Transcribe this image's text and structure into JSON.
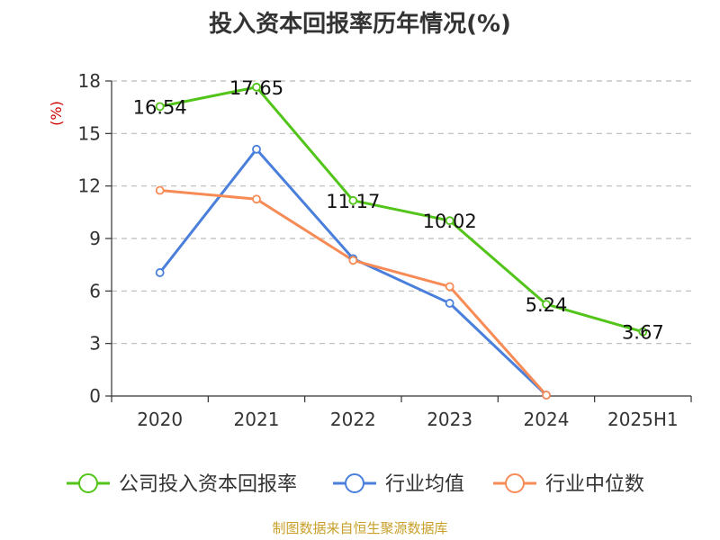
{
  "chart_data": {
    "type": "line",
    "title": "投入资本回报率历年情况(%)",
    "ylabel": "(%)",
    "xlabel": "",
    "categories": [
      "2020",
      "2021",
      "2022",
      "2023",
      "2024",
      "2025H1"
    ],
    "ylim": [
      0,
      18
    ],
    "yticks": [
      0,
      3,
      6,
      9,
      12,
      15,
      18
    ],
    "grid": true,
    "legend_position": "bottom",
    "series": [
      {
        "name": "公司投入资本回报率",
        "color": "#52c41a",
        "values": [
          16.54,
          17.65,
          11.17,
          10.02,
          5.24,
          3.67
        ],
        "labels": [
          "16.54",
          "17.65",
          "11.17",
          "10.02",
          "5.24",
          "3.67"
        ]
      },
      {
        "name": "行业均值",
        "color": "#4a7fdc",
        "values": [
          7.05,
          14.1,
          7.85,
          5.3,
          0.05,
          null
        ]
      },
      {
        "name": "行业中位数",
        "color": "#f78b56",
        "values": [
          11.75,
          11.25,
          7.75,
          6.25,
          0.05,
          null
        ]
      }
    ]
  },
  "source": "制图数据来自恒生聚源数据库"
}
